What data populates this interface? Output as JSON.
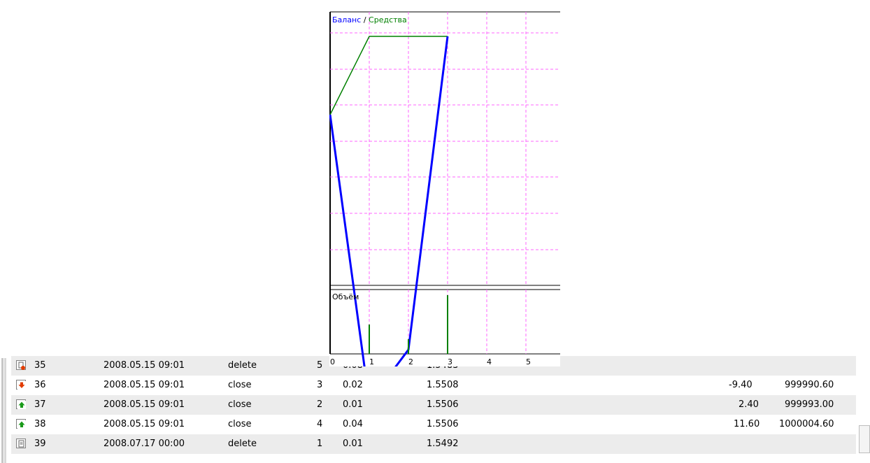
{
  "chart": {
    "legend": {
      "balance": "Баланс",
      "separator": "/",
      "equity": "Средства"
    },
    "volume_label": "Объём",
    "colors": {
      "balance": "#0000ff",
      "equity": "#008000",
      "grid": "#ff66ff",
      "volume": "#008000"
    }
  },
  "chart_data": [
    {
      "type": "line",
      "title": "",
      "series": [
        {
          "name": "Баланс",
          "x": [
            0,
            1,
            2,
            3
          ],
          "y": [
            0.5,
            -1.7,
            -1.3,
            1.1
          ]
        },
        {
          "name": "Средства",
          "x": [
            0,
            1,
            2,
            3
          ],
          "y": [
            0.5,
            1.1,
            1.1,
            1.1
          ]
        }
      ],
      "x_ticks": [
        "0",
        "1",
        "2",
        "3",
        "4",
        "5"
      ],
      "xlim": [
        0,
        5.7
      ],
      "grid": true,
      "legend_placement": "top-left"
    },
    {
      "type": "bar",
      "title": "Объём",
      "categories": [
        "1",
        "2",
        "3"
      ],
      "values": [
        0.02,
        0.01,
        0.04
      ]
    }
  ],
  "table": {
    "rows": [
      {
        "icon": "order-deleted-icon",
        "num": "35",
        "time": "2008.05.15 09:01",
        "type": "delete",
        "order": "5",
        "volume": "0.08",
        "price": "1.5483",
        "profit": "",
        "balance": ""
      },
      {
        "icon": "sell-order-icon",
        "num": "36",
        "time": "2008.05.15 09:01",
        "type": "close",
        "order": "3",
        "volume": "0.02",
        "price": "1.5508",
        "profit": "-9.40",
        "balance": "999990.60"
      },
      {
        "icon": "buy-order-icon",
        "num": "37",
        "time": "2008.05.15 09:01",
        "type": "close",
        "order": "2",
        "volume": "0.01",
        "price": "1.5506",
        "profit": "2.40",
        "balance": "999993.00"
      },
      {
        "icon": "buy-order-icon",
        "num": "38",
        "time": "2008.05.15 09:01",
        "type": "close",
        "order": "4",
        "volume": "0.04",
        "price": "1.5506",
        "profit": "11.60",
        "balance": "1000004.60"
      },
      {
        "icon": "order-icon",
        "num": "39",
        "time": "2008.07.17 00:00",
        "type": "delete",
        "order": "1",
        "volume": "0.01",
        "price": "1.5492",
        "profit": "",
        "balance": ""
      }
    ]
  }
}
